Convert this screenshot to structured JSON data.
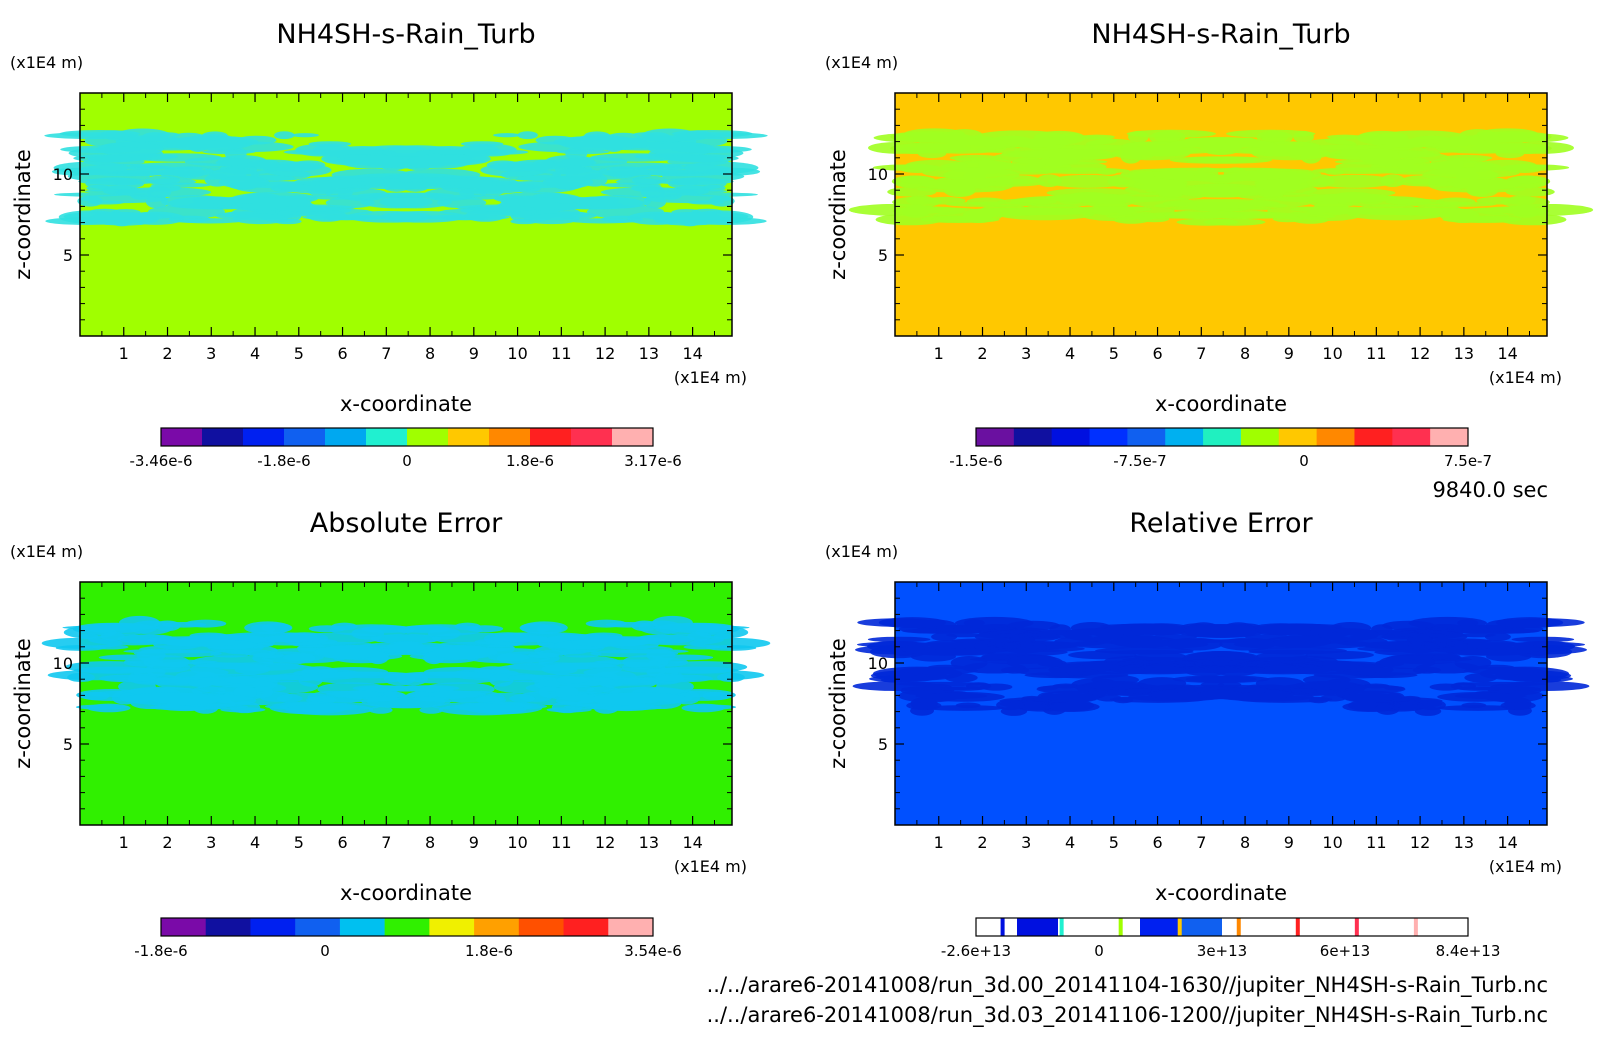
{
  "figure": {
    "time_label": "9840.0 sec",
    "paths": [
      "../../arare6-20141008/run_3d.00_20141104-1630//jupiter_NH4SH-s-Rain_Turb.nc",
      "../../arare6-20141008/run_3d.03_20141106-1200//jupiter_NH4SH-s-Rain_Turb.nc"
    ]
  },
  "chart_data": [
    {
      "type": "heatmap",
      "title": "NH4SH-s-Rain_Turb",
      "xlabel": "x-coordinate",
      "ylabel": "z-coordinate",
      "x_unit": "(x1E4 m)",
      "y_unit": "(x1E4 m)",
      "xticks": [
        1,
        2,
        3,
        4,
        5,
        6,
        7,
        8,
        9,
        10,
        11,
        12,
        13,
        14
      ],
      "yticks": [
        5,
        10
      ],
      "xlim": [
        0,
        14.9
      ],
      "ylim": [
        0,
        15
      ],
      "background_color": "#a0ff00",
      "pattern_color": "#30e0e0",
      "colorbar": {
        "colors": [
          "#7a0aa8",
          "#1010a0",
          "#0020f0",
          "#1060f0",
          "#00a8f0",
          "#20f0d0",
          "#a0ff00",
          "#ffc800",
          "#ff8800",
          "#ff2020",
          "#ff3050",
          "#ffb0b0"
        ],
        "tick_labels": [
          "-3.46e-6",
          "-1.8e-6",
          "0",
          "1.8e-6",
          "3.17e-6"
        ]
      }
    },
    {
      "type": "heatmap",
      "title": "NH4SH-s-Rain_Turb",
      "xlabel": "x-coordinate",
      "ylabel": "z-coordinate",
      "x_unit": "(x1E4 m)",
      "y_unit": "(x1E4 m)",
      "xticks": [
        1,
        2,
        3,
        4,
        5,
        6,
        7,
        8,
        9,
        10,
        11,
        12,
        13,
        14
      ],
      "yticks": [
        5,
        10
      ],
      "xlim": [
        0,
        14.9
      ],
      "ylim": [
        0,
        15
      ],
      "background_color": "#ffc800",
      "pattern_color": "#a0ff20",
      "colorbar": {
        "colors": [
          "#6a10a0",
          "#1010a0",
          "#0010e0",
          "#0030ff",
          "#1060f0",
          "#00b0f0",
          "#20f0c0",
          "#a0ff00",
          "#ffc800",
          "#ff8800",
          "#ff2020",
          "#ff3050",
          "#ffb0b0"
        ],
        "tick_labels": [
          "-1.5e-6",
          "-7.5e-7",
          "0",
          "7.5e-7"
        ]
      }
    },
    {
      "type": "heatmap",
      "title": "Absolute Error",
      "xlabel": "x-coordinate",
      "ylabel": "z-coordinate",
      "x_unit": "(x1E4 m)",
      "y_unit": "(x1E4 m)",
      "xticks": [
        1,
        2,
        3,
        4,
        5,
        6,
        7,
        8,
        9,
        10,
        11,
        12,
        13,
        14
      ],
      "yticks": [
        5,
        10
      ],
      "xlim": [
        0,
        14.9
      ],
      "ylim": [
        0,
        15
      ],
      "background_color": "#30f000",
      "pattern_color": "#10c8f0",
      "colorbar": {
        "colors": [
          "#7a0aa8",
          "#1010a0",
          "#0020f0",
          "#1060f0",
          "#00c0f0",
          "#30f000",
          "#f0f000",
          "#ffa000",
          "#ff5000",
          "#ff2020",
          "#ffb0b0"
        ],
        "tick_labels": [
          "-1.8e-6",
          "0",
          "1.8e-6",
          "3.54e-6"
        ]
      }
    },
    {
      "type": "heatmap",
      "title": "Relative Error",
      "xlabel": "x-coordinate",
      "ylabel": "z-coordinate",
      "x_unit": "(x1E4 m)",
      "y_unit": "(x1E4 m)",
      "xticks": [
        1,
        2,
        3,
        4,
        5,
        6,
        7,
        8,
        9,
        10,
        11,
        12,
        13,
        14
      ],
      "yticks": [
        5,
        10
      ],
      "xlim": [
        0,
        14.9
      ],
      "ylim": [
        0,
        15
      ],
      "background_color": "#0050ff",
      "pattern_color": "#0028d8",
      "colorbar": {
        "colors": [
          "#ffffff",
          "#0010e0",
          "#ffffff",
          "#ffffff",
          "#0020f0",
          "#1060f0",
          "#ffffff",
          "#ffffff",
          "#ffffff",
          "#ffffff",
          "#ffffff",
          "#ffffff"
        ],
        "marks": [
          "#0010e0",
          "#20f0d0",
          "#a0ff00",
          "#ffc800",
          "#ff8800",
          "#ff2020",
          "#ff3050",
          "#ffb0b0"
        ],
        "tick_labels": [
          "-2.6e+13",
          "0",
          "3e+13",
          "6e+13",
          "8.4e+13"
        ]
      }
    }
  ]
}
